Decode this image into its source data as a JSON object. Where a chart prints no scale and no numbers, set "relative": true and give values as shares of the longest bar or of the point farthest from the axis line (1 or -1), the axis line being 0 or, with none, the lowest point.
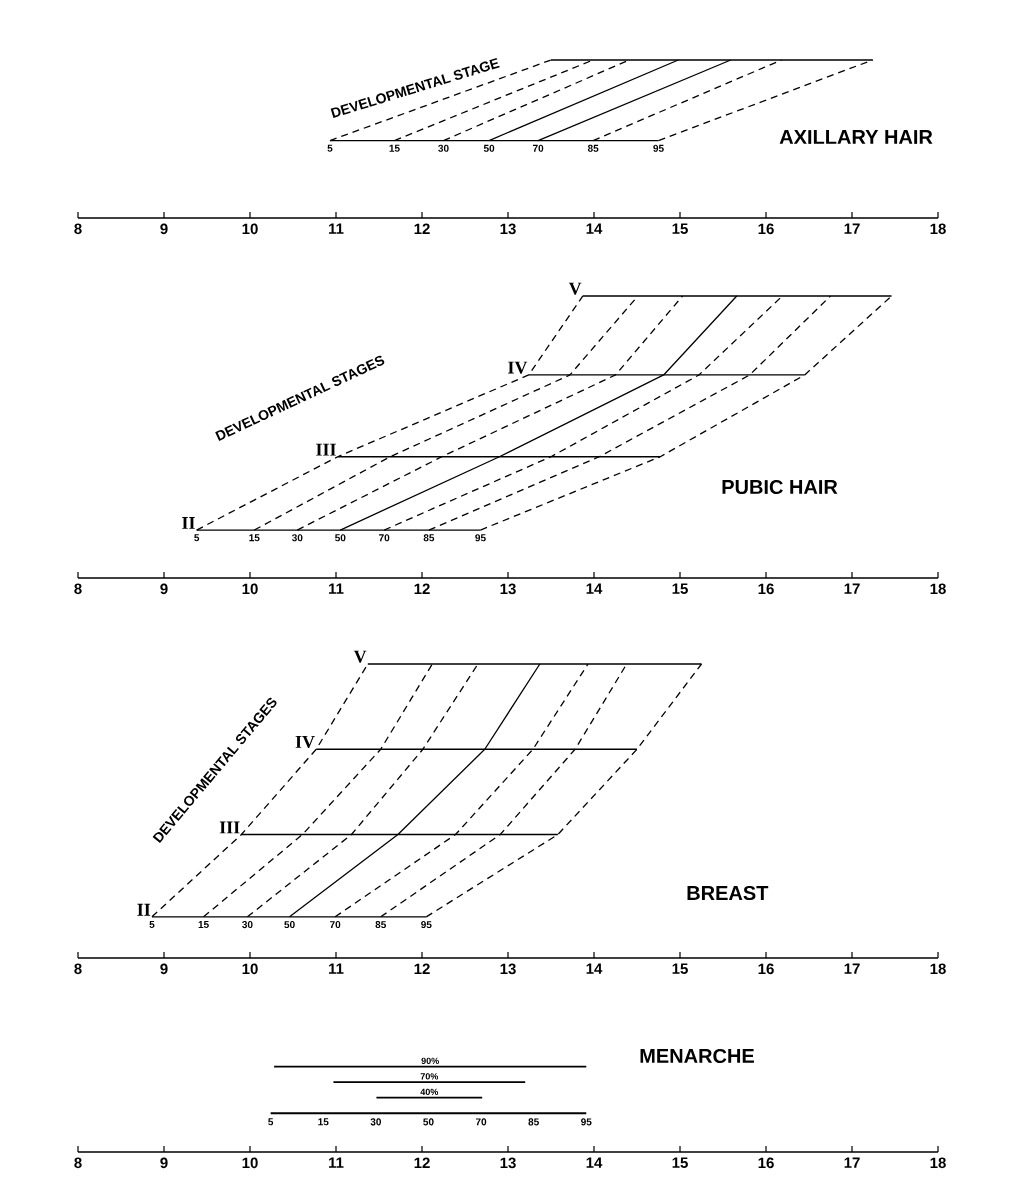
{
  "chart_data": [
    {
      "type": "line",
      "title": "AXILLARY HAIR",
      "annotations": [
        "DEVELOPMENTAL STAGE"
      ],
      "relative": true,
      "xlim": [
        8,
        18
      ],
      "xticks": [
        8,
        9,
        10,
        11,
        12,
        13,
        14,
        15,
        16,
        17,
        18
      ],
      "line_style": "dashed",
      "series": [
        {
          "name": "5",
          "color": "#000000",
          "x": [
            10.93,
            13.5
          ],
          "values": [
            0.49,
            1
          ]
        },
        {
          "name": "15",
          "color": "#000000",
          "x": [
            11.68,
            13.99
          ],
          "values": [
            0.49,
            1
          ]
        },
        {
          "name": "30",
          "color": "#000000",
          "x": [
            12.25,
            14.41
          ],
          "values": [
            0.49,
            1
          ]
        },
        {
          "name": "50",
          "color": "#000000",
          "line_style": "solid",
          "x": [
            12.78,
            14.98
          ],
          "values": [
            0.49,
            1
          ]
        },
        {
          "name": "70",
          "color": "#000000",
          "line_style": "solid",
          "x": [
            13.35,
            15.59
          ],
          "values": [
            0.49,
            1
          ]
        },
        {
          "name": "85",
          "color": "#000000",
          "x": [
            13.99,
            16.18
          ],
          "values": [
            0.49,
            1
          ]
        },
        {
          "name": "95",
          "color": "#000000",
          "x": [
            14.75,
            17.24
          ],
          "values": [
            0.49,
            1
          ]
        },
        {
          "color": "#000000",
          "line_style": "solid",
          "x": [
            10.93,
            14.75
          ],
          "values": [
            0.49,
            0.49
          ]
        },
        {
          "color": "#000000",
          "line_style": "solid",
          "x": [
            13.5,
            17.24
          ],
          "values": [
            1,
            1
          ]
        }
      ]
    },
    {
      "type": "line",
      "title": "PUBIC HAIR",
      "annotations": [
        "DEVELOPMENTAL STAGES",
        {
          "text": "II",
          "x": 9.38,
          "y": 0.17
        },
        {
          "text": "III",
          "x": 11.02,
          "y": 0.43
        },
        {
          "text": "IV",
          "x": 13.24,
          "y": 0.72
        },
        {
          "text": "V",
          "x": 13.87,
          "y": 1
        }
      ],
      "relative": true,
      "xlim": [
        8,
        18
      ],
      "xticks": [
        8,
        9,
        10,
        11,
        12,
        13,
        14,
        15,
        16,
        17,
        18
      ],
      "line_style": "dashed",
      "series": [
        {
          "name": "5",
          "color": "#000000",
          "x": [
            9.38,
            11.02,
            13.24,
            13.87
          ],
          "values": [
            0.17,
            0.43,
            0.72,
            1
          ]
        },
        {
          "name": "15",
          "color": "#000000",
          "x": [
            10.05,
            11.63,
            13.72,
            14.51
          ],
          "values": [
            0.17,
            0.43,
            0.72,
            1
          ]
        },
        {
          "name": "30",
          "color": "#000000",
          "x": [
            10.55,
            12.23,
            14.25,
            15.03
          ],
          "values": [
            0.17,
            0.43,
            0.72,
            1
          ]
        },
        {
          "name": "50",
          "color": "#000000",
          "line_style": "solid",
          "x": [
            11.05,
            12.9,
            14.81,
            15.66
          ],
          "values": [
            0.17,
            0.43,
            0.72,
            1
          ]
        },
        {
          "name": "70",
          "color": "#000000",
          "x": [
            11.56,
            13.5,
            15.22,
            16.19
          ],
          "values": [
            0.17,
            0.43,
            0.72,
            1
          ]
        },
        {
          "name": "85",
          "color": "#000000",
          "x": [
            12.08,
            14.06,
            15.81,
            16.75
          ],
          "values": [
            0.17,
            0.43,
            0.72,
            1
          ]
        },
        {
          "name": "95",
          "color": "#000000",
          "x": [
            12.68,
            14.77,
            16.45,
            17.46
          ],
          "values": [
            0.17,
            0.43,
            0.72,
            1
          ]
        },
        {
          "color": "#000000",
          "line_style": "solid",
          "x": [
            9.38,
            12.68
          ],
          "values": [
            0.17,
            0.17
          ]
        },
        {
          "color": "#000000",
          "line_style": "solid",
          "x": [
            11.02,
            14.77
          ],
          "values": [
            0.43,
            0.43
          ]
        },
        {
          "color": "#000000",
          "line_style": "solid",
          "x": [
            13.24,
            16.45
          ],
          "values": [
            0.72,
            0.72
          ]
        },
        {
          "color": "#000000",
          "line_style": "solid",
          "x": [
            13.87,
            17.46
          ],
          "values": [
            1,
            1
          ]
        }
      ]
    },
    {
      "type": "line",
      "title": "BREAST",
      "annotations": [
        "DEVELOPMENTAL STAGES",
        {
          "text": "II",
          "x": 8.86,
          "y": 0.14
        },
        {
          "text": "III",
          "x": 9.9,
          "y": 0.42
        },
        {
          "text": "IV",
          "x": 10.77,
          "y": 0.71
        },
        {
          "text": "V",
          "x": 11.37,
          "y": 1
        }
      ],
      "relative": true,
      "xlim": [
        8,
        18
      ],
      "xticks": [
        8,
        9,
        10,
        11,
        12,
        13,
        14,
        15,
        16,
        17,
        18
      ],
      "line_style": "dashed",
      "series": [
        {
          "name": "5",
          "color": "#000000",
          "x": [
            8.86,
            9.9,
            10.77,
            11.37
          ],
          "values": [
            0.14,
            0.42,
            0.71,
            1
          ]
        },
        {
          "name": "15",
          "color": "#000000",
          "x": [
            9.46,
            10.61,
            11.52,
            12.12
          ],
          "values": [
            0.14,
            0.42,
            0.71,
            1
          ]
        },
        {
          "name": "30",
          "color": "#000000",
          "x": [
            9.97,
            11.18,
            12.01,
            12.65
          ],
          "values": [
            0.14,
            0.42,
            0.71,
            1
          ]
        },
        {
          "name": "50",
          "color": "#000000",
          "line_style": "solid",
          "x": [
            10.46,
            11.72,
            12.73,
            13.37
          ],
          "values": [
            0.14,
            0.42,
            0.71,
            1
          ]
        },
        {
          "name": "70",
          "color": "#000000",
          "x": [
            10.99,
            12.39,
            13.29,
            13.93
          ],
          "values": [
            0.14,
            0.42,
            0.71,
            1
          ]
        },
        {
          "name": "85",
          "color": "#000000",
          "x": [
            11.52,
            12.91,
            13.78,
            14.38
          ],
          "values": [
            0.14,
            0.42,
            0.71,
            1
          ]
        },
        {
          "name": "95",
          "color": "#000000",
          "x": [
            12.05,
            13.58,
            14.5,
            15.25
          ],
          "values": [
            0.14,
            0.42,
            0.71,
            1
          ]
        },
        {
          "color": "#000000",
          "line_style": "solid",
          "x": [
            8.86,
            12.05
          ],
          "values": [
            0.14,
            0.14
          ]
        },
        {
          "color": "#000000",
          "line_style": "solid",
          "x": [
            9.9,
            13.58
          ],
          "values": [
            0.42,
            0.42
          ]
        },
        {
          "color": "#000000",
          "line_style": "solid",
          "x": [
            10.77,
            14.5
          ],
          "values": [
            0.71,
            0.71
          ]
        },
        {
          "color": "#000000",
          "line_style": "solid",
          "x": [
            11.37,
            15.25
          ],
          "values": [
            1,
            1
          ]
        }
      ]
    },
    {
      "type": "bar",
      "orientation": "horizontal",
      "title": "MENARCHE",
      "annotations": [
        "5",
        "15",
        "30",
        "50",
        "70",
        "85",
        "95"
      ],
      "xlim": [
        8,
        18
      ],
      "xticks": [
        8,
        9,
        10,
        11,
        12,
        13,
        14,
        15,
        16,
        17,
        18
      ],
      "categories": [
        "90%",
        "70%",
        "40%",
        null
      ],
      "base": [
        10.28,
        10.97,
        11.47,
        10.24
      ],
      "values": [
        3.63,
        2.23,
        1.23,
        3.67
      ],
      "color": "#000000"
    }
  ]
}
